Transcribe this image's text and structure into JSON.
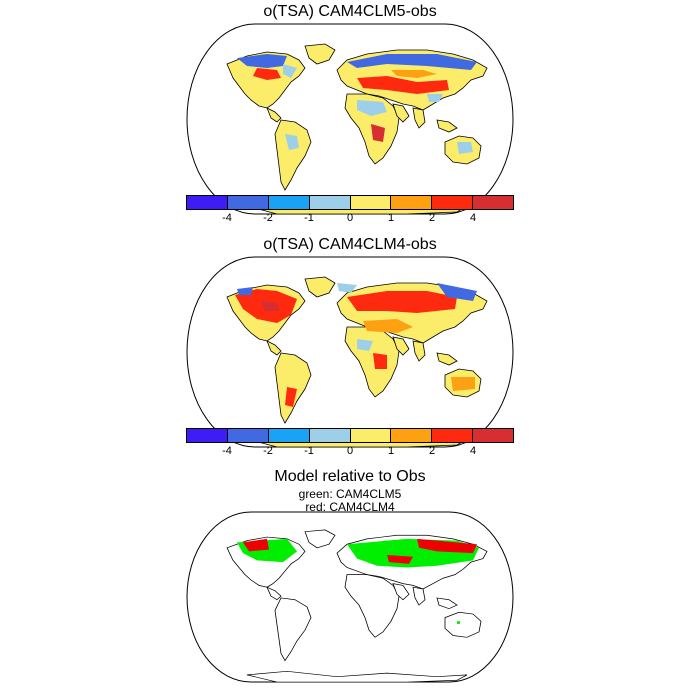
{
  "panels": [
    {
      "title": "o(TSA) CAM4CLM5-obs"
    },
    {
      "title": "o(TSA) CAM4CLM4-obs"
    },
    {
      "title": "Model relative to Obs",
      "subtitle_lines": [
        "green: CAM4CLM5",
        "red: CAM4CLM4"
      ]
    }
  ],
  "colorbar": {
    "colors": [
      "#3d1cf5",
      "#4169e1",
      "#1aa3f5",
      "#9ecfe8",
      "#fbec6a",
      "#fda012",
      "#fe2a10",
      "#d62e31"
    ],
    "tick_labels": [
      "-4",
      "-2",
      "-1",
      "0",
      "1",
      "2",
      "4"
    ]
  },
  "map_style": {
    "land_outline": "#000000",
    "ocean": "#ffffff",
    "comparison_green": "#00ee00",
    "comparison_red": "#ee0000"
  }
}
